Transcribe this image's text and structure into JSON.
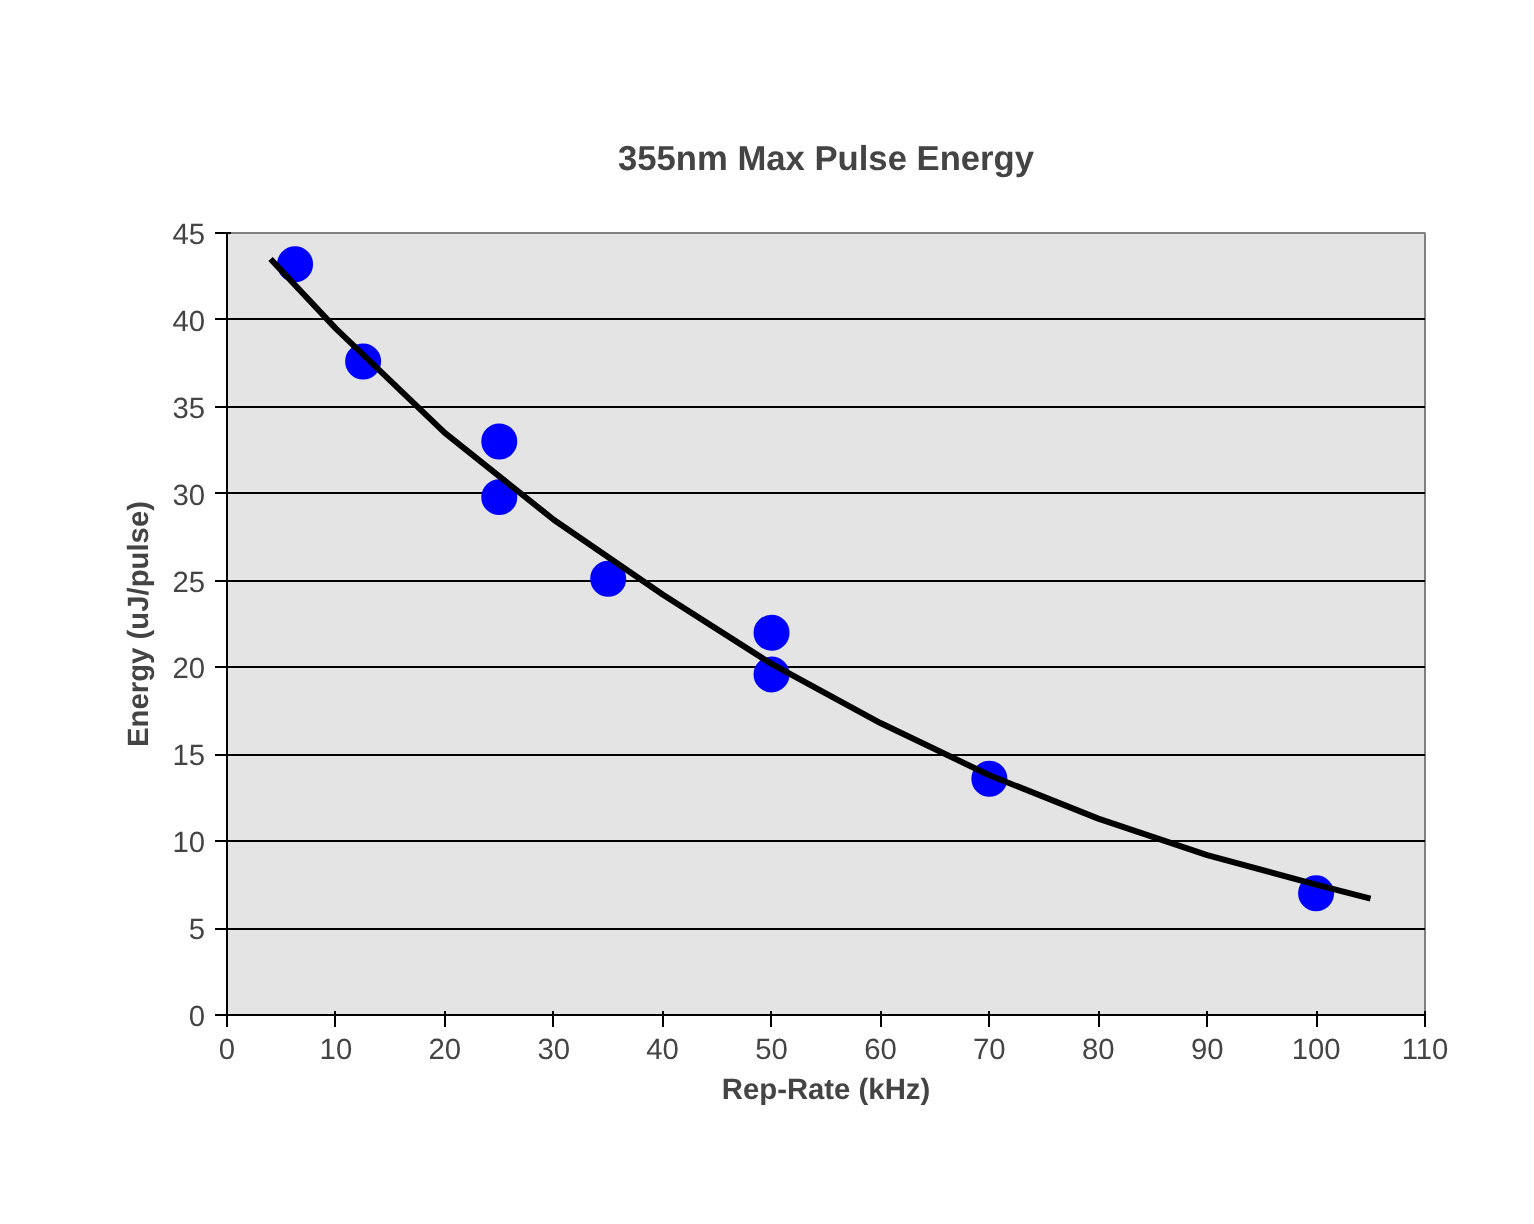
{
  "chart_data": {
    "type": "scatter",
    "title": "355nm Max Pulse Energy",
    "xlabel": "Rep-Rate (kHz)",
    "ylabel": "Energy (uJ/pulse)",
    "xlim": [
      0,
      110
    ],
    "xticks": [
      0,
      10,
      20,
      30,
      40,
      50,
      60,
      70,
      80,
      90,
      100,
      110
    ],
    "ylim": [
      0,
      45
    ],
    "yticks": [
      0,
      5,
      10,
      15,
      20,
      25,
      30,
      35,
      40,
      45
    ],
    "grid": "y",
    "series": [
      {
        "marker": "circle",
        "color": "#0000ff",
        "x": [
          6.25,
          12.5,
          25,
          25,
          35,
          50,
          50,
          70,
          100
        ],
        "values": [
          43.2,
          37.6,
          33.0,
          29.8,
          25.1,
          22.0,
          19.6,
          13.6,
          7.0
        ]
      },
      {
        "type": "line",
        "color": "#000000",
        "x": [
          4,
          10,
          20,
          30,
          40,
          50,
          60,
          70,
          80,
          90,
          100,
          105
        ],
        "values": [
          43.5,
          39.5,
          33.5,
          28.5,
          24.2,
          20.2,
          16.8,
          13.8,
          11.3,
          9.2,
          7.5,
          6.7
        ]
      }
    ]
  }
}
